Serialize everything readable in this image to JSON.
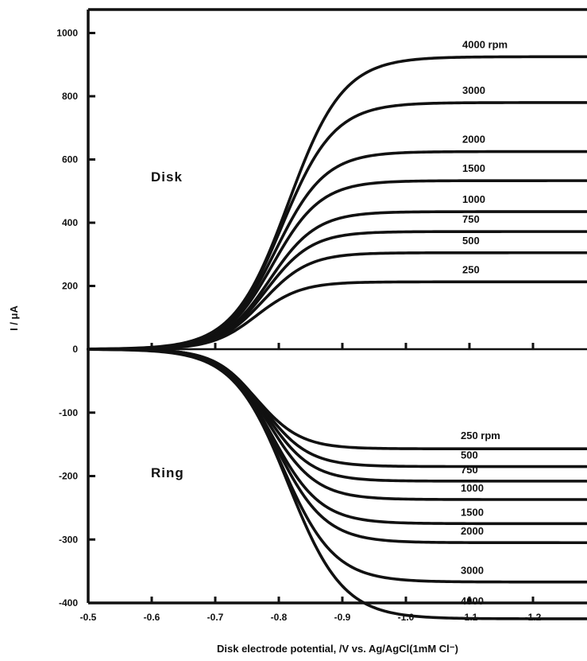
{
  "chart_data": {
    "type": "line",
    "title": "",
    "xlabel": "Disk electrode potential, /V vs. Ag/AgCl(1mM Cl⁻)",
    "ylabel": "I / μA",
    "xlim": [
      -0.5,
      -1.28
    ],
    "ylim": [
      -400,
      1000
    ],
    "x_ticks": [
      -0.5,
      -0.6,
      -0.7,
      -0.8,
      -0.9,
      -1.0,
      -1.1,
      -1.2
    ],
    "x_tick_labels": [
      "-0.5",
      "-0.6",
      "-0.7",
      "-0.8",
      "-0.9",
      "-1.0",
      "-1.1",
      "-1.2"
    ],
    "y_ticks": [
      1000,
      800,
      600,
      400,
      200,
      0,
      -100,
      -200,
      -300,
      -400
    ],
    "y_tick_labels": [
      "1000",
      "800",
      "600",
      "400",
      "200",
      "0",
      "-100",
      "-200",
      "-300",
      "-400"
    ],
    "panel_labels": [
      "Disk",
      "Ring"
    ],
    "disk_series": [
      {
        "name": "4000 rpm",
        "label": "4000 rpm",
        "limit": 925,
        "mid": -0.815,
        "width": 0.043
      },
      {
        "name": "3000",
        "label": "3000",
        "limit": 780,
        "mid": -0.805,
        "width": 0.041
      },
      {
        "name": "2000",
        "label": "2000",
        "limit": 625,
        "mid": -0.795,
        "width": 0.039
      },
      {
        "name": "1500",
        "label": "1500",
        "limit": 533,
        "mid": -0.79,
        "width": 0.038
      },
      {
        "name": "1000",
        "label": "1000",
        "limit": 435,
        "mid": -0.785,
        "width": 0.037
      },
      {
        "name": "750",
        "label": "750",
        "limit": 372,
        "mid": -0.78,
        "width": 0.036
      },
      {
        "name": "500",
        "label": "500",
        "limit": 305,
        "mid": -0.775,
        "width": 0.036
      },
      {
        "name": "250",
        "label": "250",
        "limit": 213,
        "mid": -0.765,
        "width": 0.035
      }
    ],
    "ring_series": [
      {
        "name": "250 rpm",
        "label": "250 rpm",
        "limit": -157,
        "mid": -0.765,
        "width": 0.035
      },
      {
        "name": "500",
        "label": "500",
        "limit": -185,
        "mid": -0.775,
        "width": 0.036
      },
      {
        "name": "750",
        "label": "750",
        "limit": -208,
        "mid": -0.78,
        "width": 0.036
      },
      {
        "name": "1000",
        "label": "1000",
        "limit": -237,
        "mid": -0.785,
        "width": 0.037
      },
      {
        "name": "1500",
        "label": "1500",
        "limit": -275,
        "mid": -0.79,
        "width": 0.038
      },
      {
        "name": "2000",
        "label": "2000",
        "limit": -305,
        "mid": -0.795,
        "width": 0.039
      },
      {
        "name": "3000",
        "label": "3000",
        "limit": -367,
        "mid": -0.805,
        "width": 0.041
      },
      {
        "name": "4000",
        "label": "4000",
        "limit": -425,
        "mid": -0.815,
        "width": 0.043
      }
    ],
    "grid": false,
    "legend": "inline labels at right end of curves"
  }
}
